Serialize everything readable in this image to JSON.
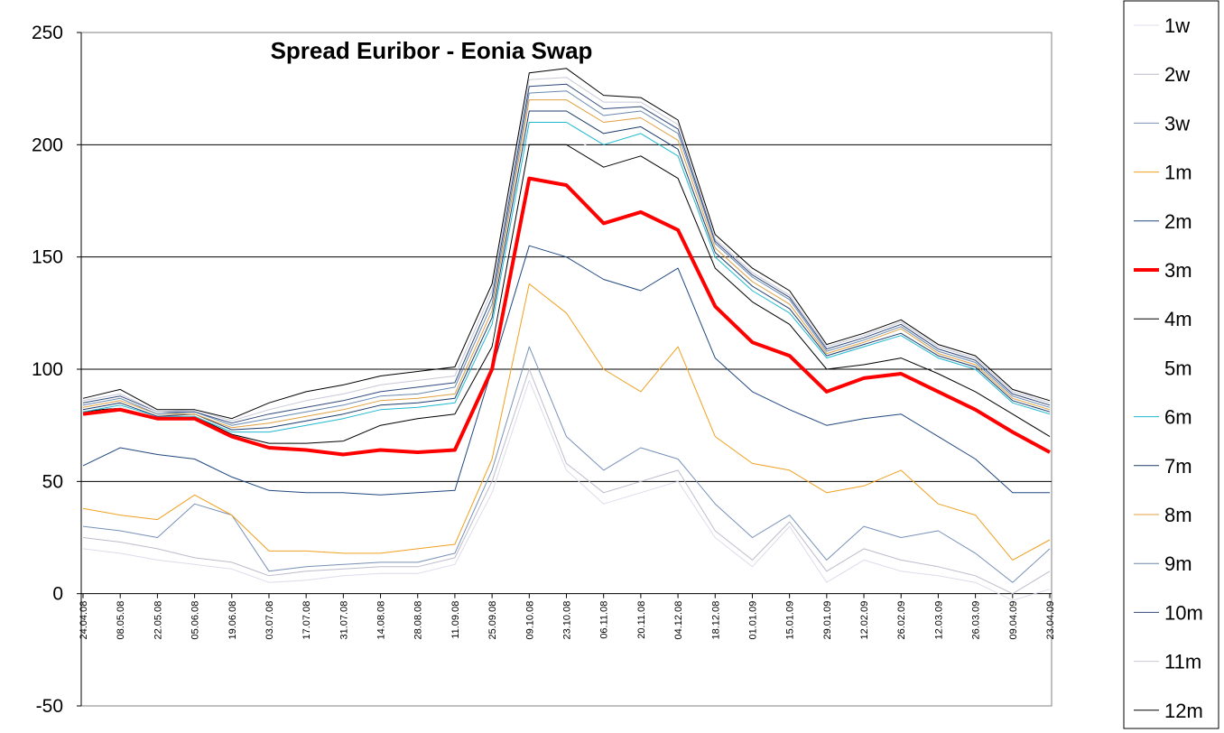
{
  "chart_data": {
    "type": "line",
    "title": "Spread Euribor - Eonia Swap",
    "xlabel": "",
    "ylabel": "",
    "ylim": [
      -50,
      250
    ],
    "yticks": [
      "250",
      "200",
      "150",
      "100",
      "50",
      "0",
      "-50"
    ],
    "ytick_values": [
      250,
      200,
      150,
      100,
      50,
      0,
      -50
    ],
    "gridlines": [
      200,
      150,
      100,
      50
    ],
    "x_tick_labels": [
      "24.04.08",
      "08.05.08",
      "22.05.08",
      "05.06.08",
      "19.06.08",
      "03.07.08",
      "17.07.08",
      "31.07.08",
      "14.08.08",
      "28.08.08",
      "11.09.08",
      "25.09.08",
      "09.10.08",
      "23.10.08",
      "06.11.08",
      "20.11.08",
      "04.12.08",
      "18.12.08",
      "01.01.09",
      "15.01.09",
      "29.01.09",
      "12.02.09",
      "26.02.09",
      "12.03.09",
      "26.03.09",
      "09.04.09",
      "23.04.09"
    ],
    "x": [
      "24.04.08",
      "08.05.08",
      "22.05.08",
      "05.06.08",
      "19.06.08",
      "03.07.08",
      "17.07.08",
      "31.07.08",
      "14.08.08",
      "28.08.08",
      "11.09.08",
      "25.09.08",
      "09.10.08",
      "23.10.08",
      "06.11.08",
      "20.11.08",
      "04.12.08",
      "18.12.08",
      "01.01.09",
      "15.01.09",
      "29.01.09",
      "12.02.09",
      "26.02.09",
      "12.03.09",
      "26.03.09",
      "09.04.09",
      "23.04.09"
    ],
    "legend_position": "right",
    "series": [
      {
        "name": "1w",
        "color": "#dcdcec",
        "width": 1,
        "values": [
          20,
          18,
          15,
          13,
          11,
          5,
          6,
          8,
          9,
          9,
          13,
          45,
          95,
          55,
          40,
          45,
          50,
          25,
          12,
          30,
          5,
          15,
          10,
          8,
          5,
          -3,
          2
        ]
      },
      {
        "name": "2w",
        "color": "#bcbccc",
        "width": 1,
        "values": [
          25,
          23,
          20,
          16,
          14,
          8,
          10,
          11,
          12,
          12,
          16,
          50,
          100,
          58,
          45,
          50,
          55,
          28,
          15,
          32,
          10,
          20,
          15,
          12,
          8,
          0,
          10
        ]
      },
      {
        "name": "3w",
        "color": "#7890b8",
        "width": 1,
        "values": [
          30,
          28,
          25,
          40,
          35,
          10,
          12,
          13,
          14,
          14,
          18,
          55,
          110,
          70,
          55,
          65,
          60,
          40,
          25,
          35,
          15,
          30,
          25,
          28,
          18,
          5,
          20
        ]
      },
      {
        "name": "1m",
        "color": "#f0a020",
        "width": 1,
        "values": [
          38,
          35,
          33,
          44,
          35,
          19,
          19,
          18,
          18,
          20,
          22,
          60,
          138,
          125,
          100,
          90,
          110,
          70,
          58,
          55,
          45,
          48,
          55,
          40,
          35,
          15,
          24
        ]
      },
      {
        "name": "2m",
        "color": "#204880",
        "width": 1,
        "values": [
          57,
          65,
          62,
          60,
          52,
          46,
          45,
          45,
          44,
          45,
          46,
          100,
          155,
          150,
          140,
          135,
          145,
          105,
          90,
          82,
          75,
          78,
          80,
          70,
          60,
          45,
          45
        ]
      },
      {
        "name": "3m",
        "color": "#ff0000",
        "width": 4,
        "values": [
          80,
          82,
          78,
          78,
          70,
          65,
          64,
          62,
          64,
          63,
          64,
          100,
          185,
          182,
          165,
          170,
          162,
          128,
          112,
          106,
          90,
          96,
          98,
          90,
          82,
          72,
          63
        ]
      },
      {
        "name": "4m",
        "color": "#000000",
        "width": 1,
        "values": [
          81,
          83,
          78,
          79,
          71,
          67,
          67,
          68,
          75,
          78,
          80,
          110,
          200,
          200,
          190,
          195,
          185,
          145,
          130,
          120,
          100,
          102,
          105,
          98,
          90,
          80,
          70
        ]
      },
      {
        "name": "5m",
        "color": "#ffffff",
        "width": 1,
        "values": [
          82,
          83,
          78,
          79,
          72,
          68,
          68,
          69,
          76,
          79,
          81,
          112,
          205,
          205,
          195,
          198,
          188,
          148,
          133,
          122,
          102,
          104,
          106,
          99,
          91,
          81,
          71
        ]
      },
      {
        "name": "6m",
        "color": "#20b8d0",
        "width": 1,
        "values": [
          81,
          84,
          79,
          79,
          72,
          72,
          75,
          78,
          82,
          83,
          85,
          120,
          210,
          210,
          200,
          205,
          195,
          150,
          135,
          125,
          105,
          110,
          115,
          105,
          100,
          85,
          80
        ]
      },
      {
        "name": "7m",
        "color": "#1c3c6c",
        "width": 1,
        "values": [
          82,
          85,
          79,
          80,
          73,
          74,
          77,
          80,
          84,
          85,
          87,
          123,
          215,
          215,
          205,
          208,
          198,
          152,
          137,
          127,
          106,
          111,
          116,
          106,
          101,
          86,
          81
        ]
      },
      {
        "name": "8m",
        "color": "#e0a040",
        "width": 1,
        "values": [
          83,
          86,
          80,
          80,
          74,
          76,
          79,
          82,
          86,
          87,
          89,
          126,
          220,
          220,
          210,
          212,
          202,
          154,
          139,
          129,
          107,
          112,
          118,
          107,
          102,
          87,
          82
        ]
      },
      {
        "name": "9m",
        "color": "#6888b0",
        "width": 1,
        "values": [
          84,
          87,
          80,
          81,
          75,
          78,
          81,
          84,
          88,
          89,
          92,
          129,
          223,
          224,
          213,
          215,
          205,
          156,
          141,
          131,
          108,
          113,
          119,
          108,
          103,
          88,
          83
        ]
      },
      {
        "name": "10m",
        "color": "#304a7c",
        "width": 1,
        "values": [
          85,
          88,
          81,
          81,
          76,
          80,
          83,
          86,
          90,
          92,
          94,
          132,
          226,
          227,
          216,
          217,
          207,
          157,
          142,
          132,
          109,
          114,
          120,
          109,
          104,
          89,
          84
        ]
      },
      {
        "name": "11m",
        "color": "#c8c8d8",
        "width": 1,
        "values": [
          86,
          89,
          81,
          82,
          77,
          82,
          86,
          89,
          93,
          95,
          97,
          135,
          229,
          230,
          219,
          219,
          209,
          158,
          143,
          133,
          110,
          115,
          121,
          110,
          105,
          90,
          85
        ]
      },
      {
        "name": "12m",
        "color": "#000000",
        "width": 1,
        "values": [
          87,
          91,
          82,
          82,
          78,
          85,
          90,
          93,
          97,
          99,
          101,
          138,
          232,
          234,
          222,
          221,
          211,
          160,
          145,
          135,
          111,
          116,
          122,
          111,
          106,
          91,
          86
        ]
      }
    ]
  }
}
